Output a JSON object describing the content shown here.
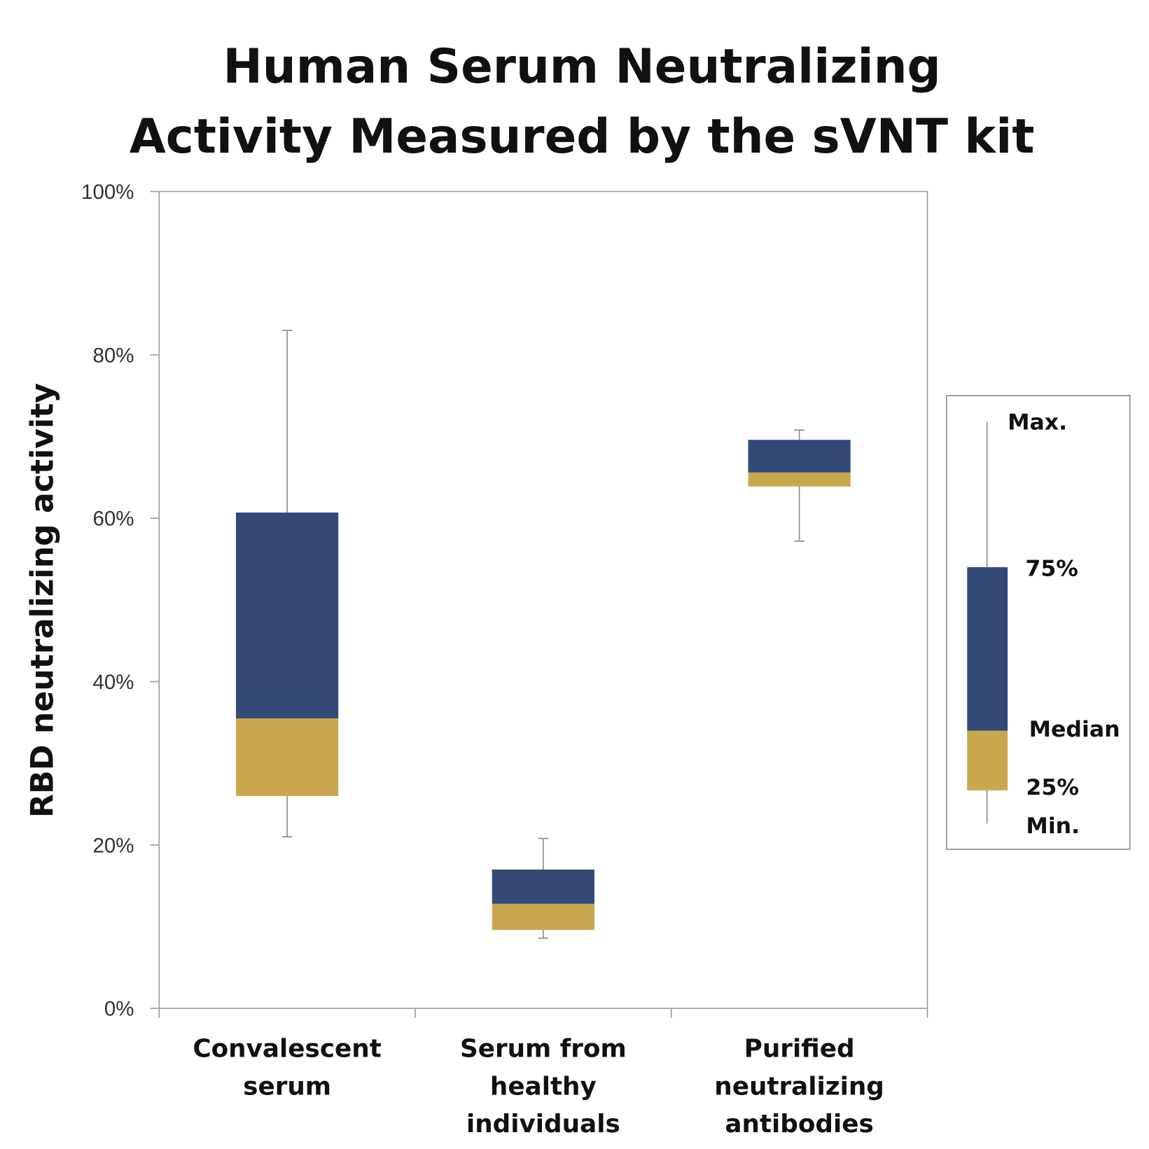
{
  "chart_data": {
    "type": "box",
    "title": [
      "Human Serum Neutralizing",
      "Activity Measured by the sVNT kit"
    ],
    "xlabel": "",
    "ylabel": "RBD neutralizing activity",
    "ylim": [
      0,
      100
    ],
    "yticks": [
      "0%",
      "20%",
      "40%",
      "60%",
      "80%",
      "100%"
    ],
    "grid": false,
    "categories": [
      [
        "Convalescent",
        "serum"
      ],
      [
        "Serum from",
        "healthy",
        "individuals"
      ],
      [
        "Purified",
        "neutralizing",
        "antibodies"
      ]
    ],
    "boxes": [
      {
        "min": 21,
        "q1": 26,
        "median": 35.5,
        "q3": 60.7,
        "max": 83
      },
      {
        "min": 8.6,
        "q1": 9.6,
        "median": 12.8,
        "q3": 17,
        "max": 20.8
      },
      {
        "min": 57.2,
        "q1": 63.9,
        "median": 65.6,
        "q3": 69.6,
        "max": 70.8
      }
    ],
    "colors": {
      "upper": "#334a78",
      "lower": "#c9a74e",
      "whisker": "#888888",
      "axis": "#999999"
    },
    "legend": {
      "position": "right",
      "labels": {
        "max": "Max.",
        "q3": "75%",
        "median": "Median",
        "q1": "25%",
        "min": "Min."
      }
    }
  }
}
